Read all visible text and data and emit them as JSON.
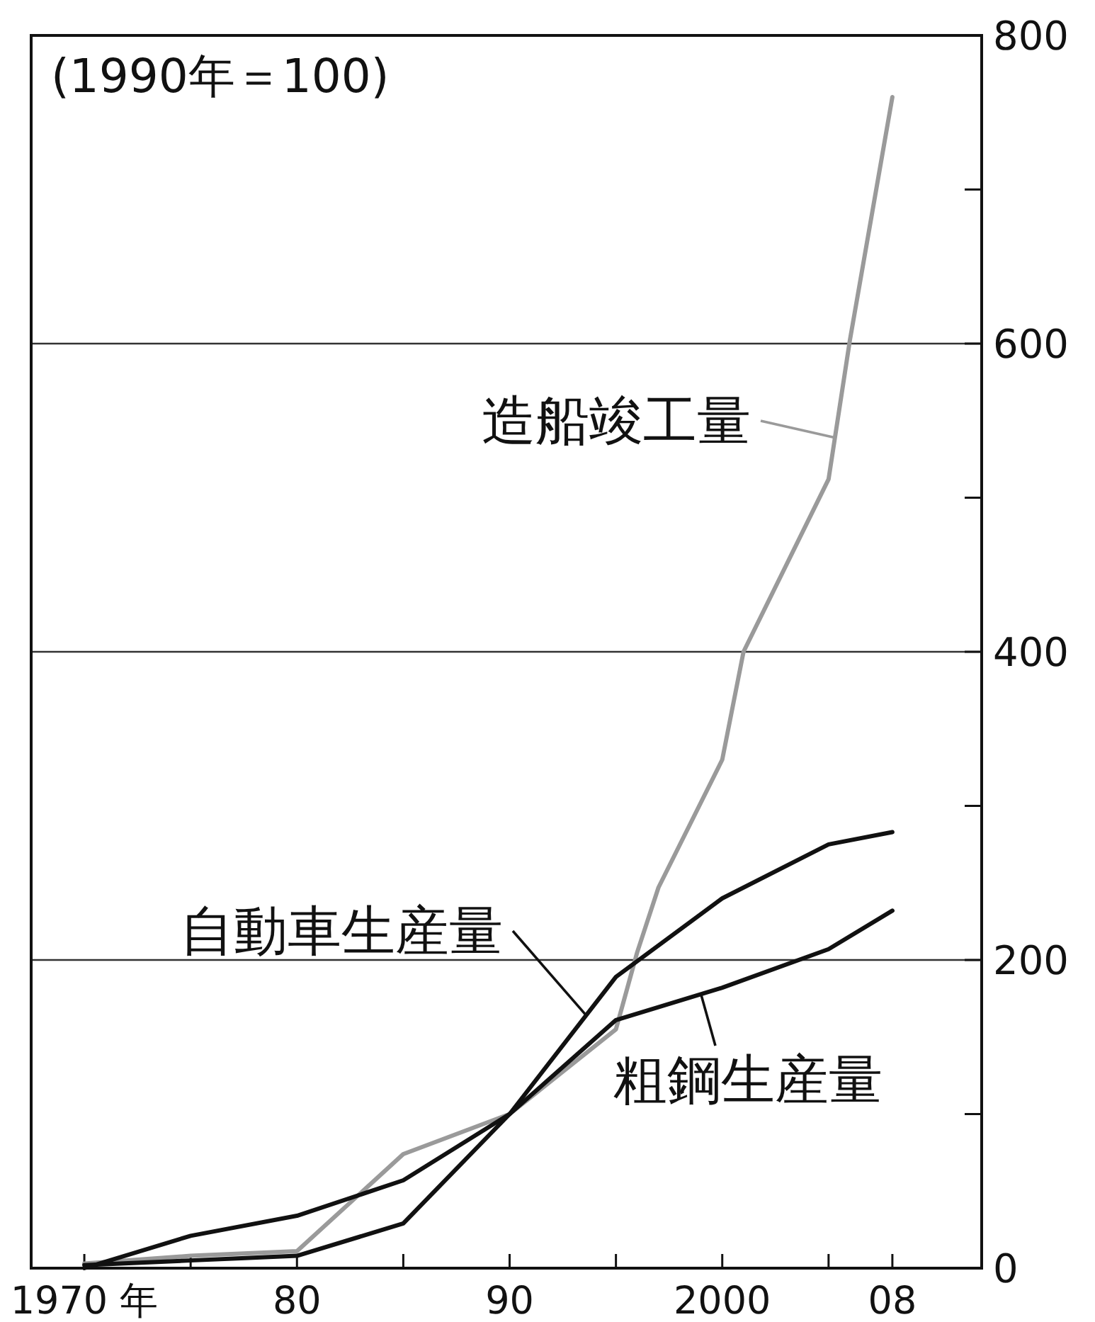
{
  "chart_data": {
    "type": "line",
    "annotations": [
      "(1990年＝100)"
    ],
    "xlim": [
      1967.5,
      2012.2
    ],
    "xticks": [
      {
        "value": 1970,
        "label": "1970 年"
      },
      {
        "value": 1975,
        "label": null
      },
      {
        "value": 1980,
        "label": "80"
      },
      {
        "value": 1985,
        "label": null
      },
      {
        "value": 1990,
        "label": "90"
      },
      {
        "value": 1995,
        "label": null
      },
      {
        "value": 2000,
        "label": "2000"
      },
      {
        "value": 2005,
        "label": null
      },
      {
        "value": 2008,
        "label": "08"
      }
    ],
    "ylim": [
      0,
      800
    ],
    "yticks": [
      0,
      {
        "value": 100,
        "label": null
      },
      200,
      {
        "value": 300,
        "label": null
      },
      400,
      {
        "value": 500,
        "label": null
      },
      600,
      {
        "value": 700,
        "label": null
      },
      800
    ],
    "grid": "y",
    "series": [
      {
        "name": "造船竣工量",
        "color": "#9a9a9a",
        "x": [
          1970,
          1975,
          1980,
          1985,
          1990,
          1995,
          1996,
          1997,
          2000,
          2001,
          2005,
          2006,
          2008
        ],
        "values": [
          3,
          8,
          11,
          74,
          100,
          155,
          205,
          247,
          330,
          400,
          512,
          602,
          760
        ]
      },
      {
        "name": "自動車生産量",
        "color": "#111111",
        "x": [
          1970,
          1975,
          1980,
          1985,
          1990,
          1995,
          2000,
          2005,
          2008
        ],
        "values": [
          2,
          5,
          8,
          29,
          100,
          189,
          240,
          275,
          283
        ]
      },
      {
        "name": "粗鋼生産量",
        "color": "#111111",
        "x": [
          1970,
          1975,
          1980,
          1985,
          1990,
          1995,
          2000,
          2005,
          2008
        ],
        "values": [
          0,
          21,
          34,
          57,
          100,
          161,
          182,
          207,
          232
        ]
      }
    ]
  }
}
